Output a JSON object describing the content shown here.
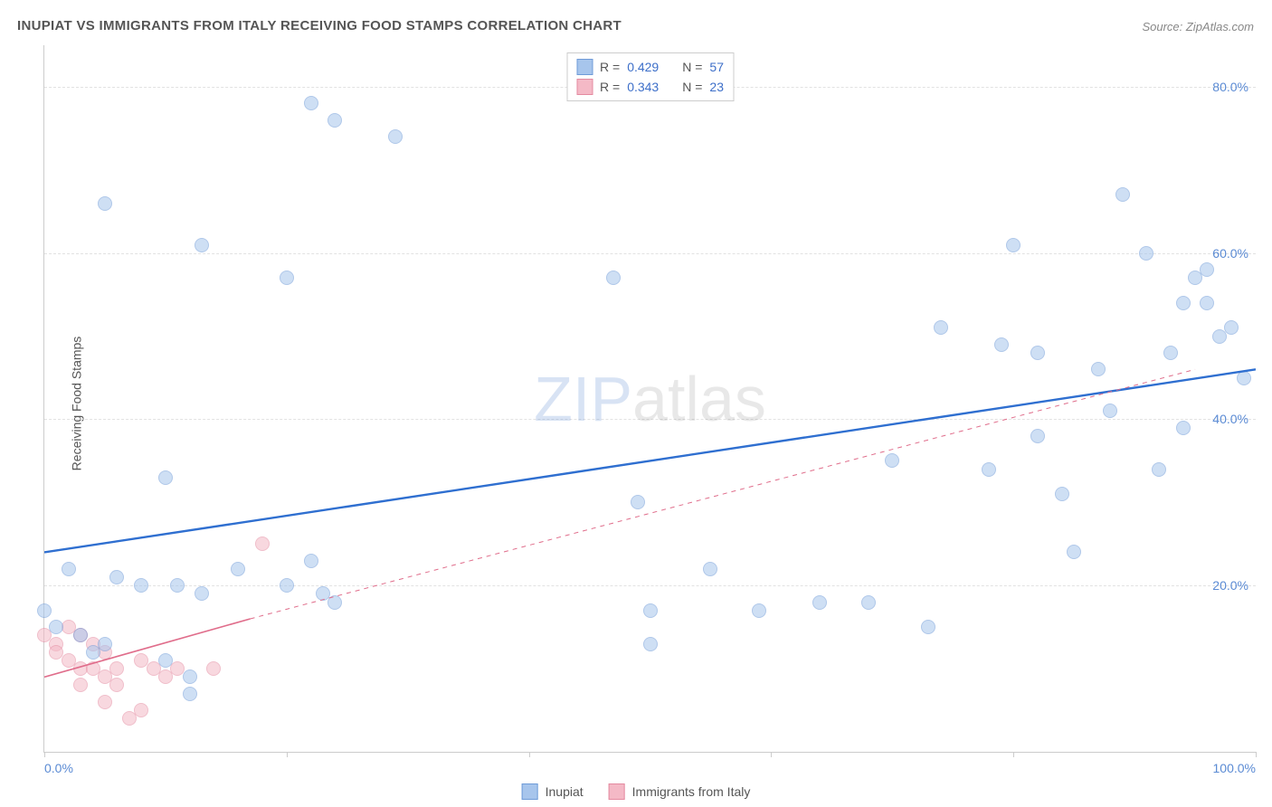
{
  "title": "INUPIAT VS IMMIGRANTS FROM ITALY RECEIVING FOOD STAMPS CORRELATION CHART",
  "source": "Source: ZipAtlas.com",
  "ylabel": "Receiving Food Stamps",
  "watermark_a": "ZIP",
  "watermark_b": "atlas",
  "chart": {
    "type": "scatter",
    "xlim": [
      0,
      100
    ],
    "ylim": [
      0,
      85
    ],
    "xticks": [
      0,
      20,
      40,
      60,
      80,
      100
    ],
    "xtick_labels": [
      "0.0%",
      "",
      "",
      "",
      "",
      "100.0%"
    ],
    "yticks": [
      20,
      40,
      60,
      80
    ],
    "ytick_labels": [
      "20.0%",
      "40.0%",
      "60.0%",
      "80.0%"
    ],
    "background_color": "#ffffff",
    "grid_color": "#e2e2e2",
    "axis_color": "#cccccc",
    "marker_radius": 7,
    "marker_opacity": 0.55,
    "series": [
      {
        "name": "Inupiat",
        "fill": "#a7c5ec",
        "stroke": "#6f9bd8",
        "line_color": "#2f6fd0",
        "line_width": 2.4,
        "line_dash": "none",
        "trend": {
          "x1": 0,
          "y1": 24,
          "x2": 100,
          "y2": 46,
          "extrapolated": false
        },
        "R": "0.429",
        "N": "57",
        "points": [
          [
            5,
            66
          ],
          [
            13,
            61
          ],
          [
            20,
            57
          ],
          [
            22,
            78
          ],
          [
            24,
            76
          ],
          [
            29,
            74
          ],
          [
            10,
            33
          ],
          [
            2,
            22
          ],
          [
            0,
            17
          ],
          [
            1,
            15
          ],
          [
            3,
            14
          ],
          [
            5,
            13
          ],
          [
            6,
            21
          ],
          [
            8,
            20
          ],
          [
            11,
            20
          ],
          [
            10,
            11
          ],
          [
            12,
            9
          ],
          [
            12,
            7
          ],
          [
            13,
            19
          ],
          [
            16,
            22
          ],
          [
            22,
            23
          ],
          [
            20,
            20
          ],
          [
            23,
            19
          ],
          [
            24,
            18
          ],
          [
            49,
            30
          ],
          [
            47,
            57
          ],
          [
            50,
            17
          ],
          [
            50,
            13
          ],
          [
            55,
            22
          ],
          [
            59,
            17
          ],
          [
            64,
            18
          ],
          [
            68,
            18
          ],
          [
            70,
            35
          ],
          [
            73,
            15
          ],
          [
            74,
            51
          ],
          [
            78,
            34
          ],
          [
            79,
            49
          ],
          [
            82,
            38
          ],
          [
            84,
            31
          ],
          [
            85,
            24
          ],
          [
            87,
            46
          ],
          [
            88,
            41
          ],
          [
            89,
            67
          ],
          [
            91,
            60
          ],
          [
            92,
            34
          ],
          [
            93,
            48
          ],
          [
            94,
            54
          ],
          [
            94,
            39
          ],
          [
            95,
            57
          ],
          [
            96,
            58
          ],
          [
            96,
            54
          ],
          [
            97,
            50
          ],
          [
            98,
            51
          ],
          [
            99,
            45
          ],
          [
            80,
            61
          ],
          [
            82,
            48
          ],
          [
            4,
            12
          ]
        ]
      },
      {
        "name": "Immigrants from Italy",
        "fill": "#f4b9c6",
        "stroke": "#e48aa0",
        "line_color": "#e06d8b",
        "line_width": 1.6,
        "line_dash": "none",
        "trend": {
          "x1": 0,
          "y1": 9,
          "x2": 17,
          "y2": 16,
          "extrapolated_to": [
            95,
            46
          ]
        },
        "R": "0.343",
        "N": "23",
        "points": [
          [
            0,
            14
          ],
          [
            1,
            13
          ],
          [
            1,
            12
          ],
          [
            2,
            15
          ],
          [
            2,
            11
          ],
          [
            3,
            14
          ],
          [
            3,
            10
          ],
          [
            3,
            8
          ],
          [
            4,
            13
          ],
          [
            4,
            10
          ],
          [
            5,
            12
          ],
          [
            5,
            9
          ],
          [
            5,
            6
          ],
          [
            6,
            10
          ],
          [
            6,
            8
          ],
          [
            7,
            4
          ],
          [
            8,
            11
          ],
          [
            8,
            5
          ],
          [
            9,
            10
          ],
          [
            10,
            9
          ],
          [
            11,
            10
          ],
          [
            14,
            10
          ],
          [
            18,
            25
          ]
        ]
      }
    ]
  },
  "stats_legend": {
    "rows": [
      {
        "swatch_fill": "#a7c5ec",
        "swatch_stroke": "#6f9bd8",
        "R_label": "R =",
        "R": "0.429",
        "N_label": "N =",
        "N": "57"
      },
      {
        "swatch_fill": "#f4b9c6",
        "swatch_stroke": "#e48aa0",
        "R_label": "R =",
        "R": "0.343",
        "N_label": "N =",
        "N": "23"
      }
    ]
  },
  "series_legend": {
    "items": [
      {
        "swatch_fill": "#a7c5ec",
        "swatch_stroke": "#6f9bd8",
        "label": "Inupiat"
      },
      {
        "swatch_fill": "#f4b9c6",
        "swatch_stroke": "#e48aa0",
        "label": "Immigrants from Italy"
      }
    ]
  }
}
